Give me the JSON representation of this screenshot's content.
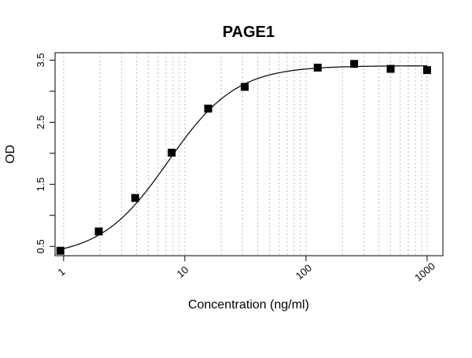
{
  "chart_data": {
    "type": "scatter",
    "title": "PAGE1",
    "xlabel": "Concentration (ng/ml)",
    "ylabel": "OD",
    "x_scale": "log",
    "xlim": [
      0.85,
      1350
    ],
    "ylim": [
      0.35,
      3.62
    ],
    "grid": "vertical dotted lines at log-scale minor ticks",
    "x_ticks": [
      1,
      10,
      100,
      1000
    ],
    "x_tick_labels": [
      "1",
      "10",
      "100",
      "1000"
    ],
    "y_ticks": [
      0.5,
      1.5,
      2.5,
      3.5
    ],
    "y_tick_labels": [
      "0.5",
      "1.5",
      "2.5",
      "3.5"
    ],
    "y_minor_ticks": [
      1.0,
      2.0,
      3.0
    ],
    "series": [
      {
        "marker": "square",
        "x": [
          0.94,
          1.95,
          3.9,
          7.8,
          15.6,
          31.25,
          125,
          250,
          500,
          1000
        ],
        "y": [
          0.43,
          0.74,
          1.28,
          2.01,
          2.72,
          3.07,
          3.38,
          3.44,
          3.36,
          3.34
        ]
      }
    ],
    "fit_curve": {
      "type": "4PL",
      "bottom": 0.33,
      "top": 3.41,
      "ec50": 7.3,
      "hill": 1.55
    },
    "colors": {
      "marker": "#000000",
      "curve": "#000000",
      "grid": "#bdbdbd",
      "axis": "#000000"
    }
  }
}
